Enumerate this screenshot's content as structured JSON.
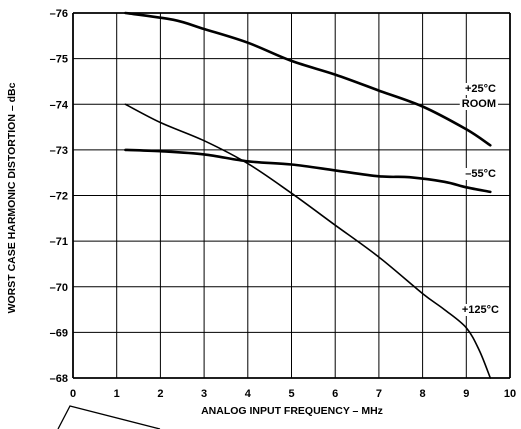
{
  "chart_data": {
    "type": "line",
    "title": "",
    "xlabel": "ANALOG INPUT FREQUENCY – MHz",
    "ylabel": "WORST CASE HARMONIC DISTORTION – dBc",
    "xlim": [
      0,
      10
    ],
    "ylim": [
      -68,
      -76
    ],
    "x_ticks": [
      "0",
      "1",
      "2",
      "3",
      "4",
      "5",
      "6",
      "7",
      "8",
      "9",
      "10"
    ],
    "y_ticks": [
      "–68",
      "–69",
      "–70",
      "–71",
      "–72",
      "–73",
      "–74",
      "–75",
      "–76"
    ],
    "grid": true,
    "series": [
      {
        "labels": [
          "+25°C",
          "ROOM"
        ],
        "stroke": "thick",
        "x": [
          1.2,
          2.3,
          3.0,
          4.0,
          5.0,
          6.0,
          7.0,
          8.0,
          9.0,
          9.55
        ],
        "y": [
          -76.0,
          -75.85,
          -75.65,
          -75.35,
          -74.95,
          -74.65,
          -74.3,
          -73.95,
          -73.45,
          -73.1
        ]
      },
      {
        "labels": [
          "–55°C"
        ],
        "stroke": "thick",
        "x": [
          1.2,
          2.0,
          3.0,
          4.0,
          5.0,
          6.0,
          7.0,
          7.7,
          8.5,
          9.0,
          9.55
        ],
        "y": [
          -73.0,
          -72.97,
          -72.9,
          -72.75,
          -72.68,
          -72.55,
          -72.42,
          -72.4,
          -72.3,
          -72.18,
          -72.08
        ]
      },
      {
        "labels": [
          "+125°C"
        ],
        "stroke": "thin",
        "x": [
          1.2,
          2.0,
          3.0,
          4.0,
          5.0,
          6.0,
          7.0,
          8.0,
          8.5,
          9.0,
          9.3,
          9.55
        ],
        "y": [
          -74.0,
          -73.6,
          -73.2,
          -72.7,
          -72.05,
          -71.35,
          -70.65,
          -69.85,
          -69.5,
          -69.1,
          -68.6,
          -68.0
        ]
      }
    ]
  }
}
